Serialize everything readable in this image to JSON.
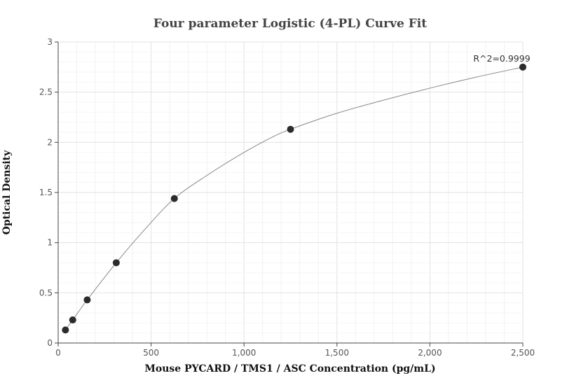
{
  "chart_data": {
    "type": "scatter",
    "title": "Four parameter Logistic (4-PL) Curve Fit",
    "xlabel": "Mouse PYCARD / TMS1 / ASC Concentration (pg/mL)",
    "ylabel": "Optical Density",
    "xlim": [
      0,
      2500
    ],
    "ylim": [
      0,
      3
    ],
    "x_ticks": [
      0,
      500,
      1000,
      1500,
      2000,
      2500
    ],
    "x_tick_labels": [
      "0",
      "500",
      "1,000",
      "1,500",
      "2,000",
      "2,500"
    ],
    "y_ticks": [
      0,
      0.5,
      1,
      1.5,
      2,
      2.5,
      3
    ],
    "y_tick_labels": [
      "0",
      "0.5",
      "1",
      "1.5",
      "2",
      "2.5",
      "3"
    ],
    "grid": true,
    "points": {
      "x": [
        39.06,
        78.13,
        156.25,
        312.5,
        625,
        1250,
        2500
      ],
      "y": [
        0.13,
        0.23,
        0.43,
        0.8,
        1.44,
        2.13,
        2.75
      ]
    },
    "curve": {
      "x": [
        39.06,
        78.13,
        156.25,
        312.5,
        470,
        625,
        800,
        1000,
        1150,
        1250,
        1500,
        1750,
        2000,
        2250,
        2500
      ],
      "y": [
        0.13,
        0.23,
        0.43,
        0.8,
        1.14,
        1.44,
        1.67,
        1.9,
        2.05,
        2.13,
        2.29,
        2.42,
        2.54,
        2.65,
        2.75
      ]
    },
    "annotation": "R^2=0.9999",
    "colors": {
      "point": "#2b2b2b",
      "curve": "#888888",
      "grid": "#e6e6e6",
      "axis": "#444444"
    }
  }
}
